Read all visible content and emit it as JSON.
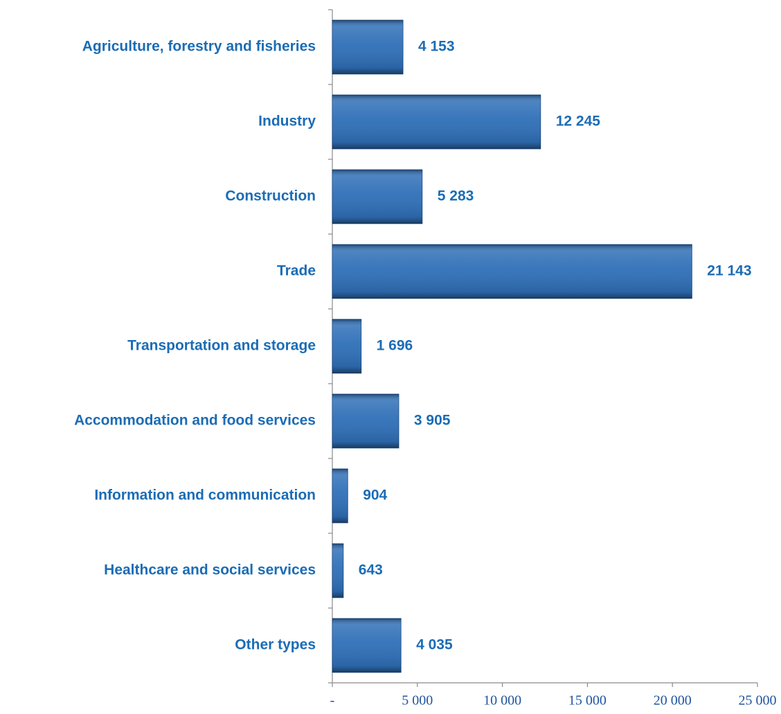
{
  "chart_data": {
    "type": "bar",
    "orientation": "horizontal",
    "categories": [
      "Agriculture, forestry and fisheries",
      "Industry",
      "Construction",
      "Trade",
      "Transportation and storage",
      "Accommodation and food services",
      "Information and communication",
      "Healthcare and social services",
      "Other types"
    ],
    "values": [
      4153,
      12245,
      5283,
      21143,
      1696,
      3905,
      904,
      643,
      4035
    ],
    "value_labels": [
      "4 153",
      "12 245",
      "5 283",
      "21 143",
      "1 696",
      "3 905",
      "904",
      "643",
      "4 035"
    ],
    "color": "#2f6fb7",
    "xlim": [
      0,
      25000
    ],
    "xticks": [
      {
        "value": 0,
        "label": "-"
      },
      {
        "value": 5000,
        "label": "5 000"
      },
      {
        "value": 10000,
        "label": "10 000"
      },
      {
        "value": 15000,
        "label": "15 000"
      },
      {
        "value": 20000,
        "label": "20 000"
      },
      {
        "value": 25000,
        "label": "25 000"
      }
    ],
    "grid": false
  }
}
